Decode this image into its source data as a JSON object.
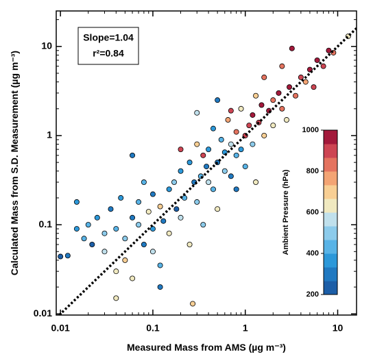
{
  "chart_data": {
    "type": "scatter",
    "xlabel": "Measured Mass from AMS (µg m⁻³)",
    "ylabel": "Calculated Mass from S.D. Measurement (µg m⁻³)",
    "annotations": [
      "Slope=1.04",
      "r²=0.84"
    ],
    "xscale": "log",
    "yscale": "log",
    "minor_ticks": true,
    "xlim": [
      0.009,
      16
    ],
    "ylim": [
      0.0097,
      25
    ],
    "xticks": [
      0.01,
      0.1,
      1,
      10
    ],
    "yticks": [
      0.01,
      0.1,
      1,
      10
    ],
    "one_to_one_line": true,
    "colorbar_label": "Ambient Pressure (hPa)",
    "colorbar_lim": [
      200,
      1000
    ],
    "colorbar_ticks": [
      200,
      400,
      600,
      800,
      1000
    ],
    "colormap": [
      "#1c5ea7",
      "#2079c1",
      "#2c98d9",
      "#58b3e6",
      "#8ccbeb",
      "#c0e0ec",
      "#f0e9c0",
      "#f8cf94",
      "#f3a474",
      "#e4735f",
      "#cd4553",
      "#a3193b"
    ],
    "x": [
      0.012,
      0.015,
      0.018,
      0.02,
      0.022,
      0.025,
      0.03,
      0.03,
      0.035,
      0.04,
      0.04,
      0.045,
      0.05,
      0.05,
      0.06,
      0.06,
      0.07,
      0.07,
      0.08,
      0.08,
      0.09,
      0.1,
      0.1,
      0.1,
      0.12,
      0.12,
      0.13,
      0.15,
      0.15,
      0.17,
      0.18,
      0.2,
      0.2,
      0.22,
      0.25,
      0.25,
      0.27,
      0.28,
      0.3,
      0.3,
      0.33,
      0.35,
      0.38,
      0.4,
      0.4,
      0.45,
      0.45,
      0.5,
      0.5,
      0.55,
      0.6,
      0.6,
      0.65,
      0.7,
      0.7,
      0.8,
      0.8,
      0.9,
      0.9,
      1.0,
      1.0,
      1.1,
      1.2,
      1.2,
      1.3,
      1.4,
      1.5,
      1.6,
      1.8,
      2.0,
      2.0,
      2.3,
      2.5,
      2.8,
      3.0,
      3.2,
      3.5,
      4.0,
      4.5,
      5.0,
      5.5,
      6.0,
      7.0,
      8.0,
      9.0,
      13,
      0.015,
      0.2,
      0.06,
      1.6,
      0.12,
      0.3,
      0.8,
      0.01,
      0.5,
      2.5,
      0.04,
      0.35,
      0.7,
      1.3
    ],
    "y": [
      0.045,
      0.09,
      0.07,
      0.1,
      0.06,
      0.12,
      0.08,
      0.05,
      0.15,
      0.03,
      0.09,
      0.2,
      0.07,
      0.04,
      0.12,
      0.025,
      0.1,
      0.18,
      0.06,
      0.3,
      0.14,
      0.09,
      0.05,
      0.22,
      0.16,
      0.035,
      0.11,
      0.25,
      0.08,
      0.3,
      0.15,
      0.12,
      0.4,
      0.2,
      0.06,
      0.5,
      0.013,
      0.3,
      0.18,
      0.8,
      0.35,
      0.1,
      0.45,
      0.3,
      0.7,
      0.25,
      1.2,
      0.5,
      0.15,
      0.9,
      0.4,
      0.65,
      1.5,
      0.35,
      0.8,
      0.6,
      1.1,
      0.7,
      2.0,
      1.0,
      0.45,
      1.3,
      0.8,
      1.7,
      0.3,
      1.4,
      2.2,
      1.0,
      1.9,
      2.5,
      1.3,
      3.0,
      2.0,
      1.5,
      3.5,
      9.5,
      2.8,
      4.5,
      4.0,
      5.5,
      3.5,
      7.0,
      6.0,
      9.0,
      8.5,
      13,
      0.18,
      0.7,
      0.6,
      4.5,
      0.02,
      1.8,
      0.25,
      0.044,
      2.5,
      6.0,
      0.015,
      0.6,
      1.9,
      2.8
    ],
    "pressure": [
      300,
      350,
      450,
      400,
      250,
      380,
      500,
      550,
      300,
      620,
      420,
      360,
      480,
      700,
      330,
      650,
      520,
      410,
      280,
      450,
      600,
      380,
      560,
      320,
      700,
      420,
      300,
      390,
      640,
      470,
      260,
      540,
      350,
      430,
      600,
      380,
      680,
      310,
      480,
      720,
      400,
      520,
      280,
      580,
      340,
      460,
      380,
      300,
      650,
      420,
      500,
      360,
      780,
      290,
      560,
      440,
      830,
      370,
      620,
      880,
      410,
      920,
      520,
      960,
      610,
      900,
      940,
      700,
      980,
      860,
      640,
      950,
      830,
      600,
      970,
      990,
      800,
      930,
      760,
      960,
      880,
      990,
      910,
      950,
      850,
      650,
      370,
      880,
      330,
      810,
      300,
      560,
      290,
      250,
      330,
      850,
      620,
      930,
      880,
      700
    ]
  }
}
